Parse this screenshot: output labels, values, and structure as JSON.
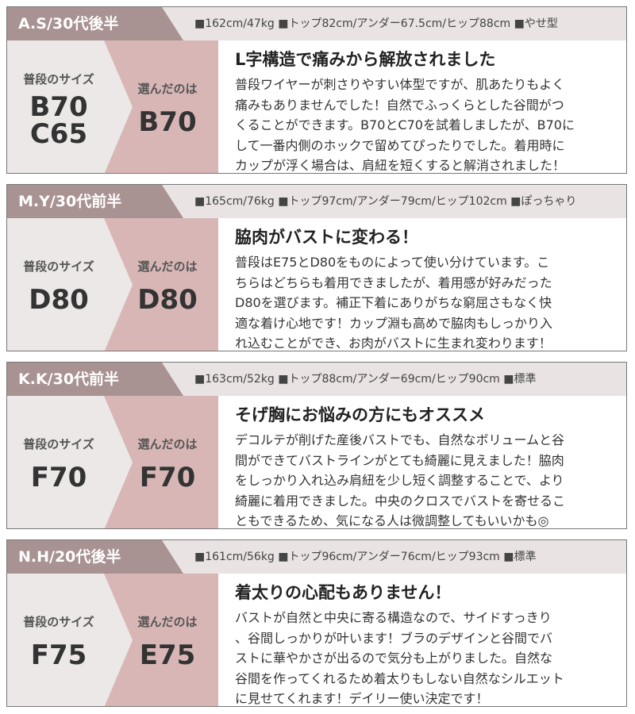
{
  "reviews": [
    {
      "name": "A.S/30代後半",
      "specs": "■162cm/47kg ■トップ82cm/アンダー67.5cm/ヒップ88cm ■やせ型",
      "usual_label": "普段のサイズ",
      "usual_size": [
        "B70",
        "C65"
      ],
      "chosen_label": "選んだのは",
      "chosen_size": "B70",
      "title": "L字構造で痛みから解放されました",
      "body": [
        "普段ワイヤーが刺さりやすい体型ですが、肌あたりもよく",
        "痛みもありませんでした！自然でふっくらとした谷間がつ",
        "くることができます。B70とC70を試着しましたが、B70に",
        "して一番内側のホックで留めてぴったりでした。着用時に",
        "カップが浮く場合は、肩紐を短くすると解消されました！"
      ]
    },
    {
      "name": "M.Y/30代前半",
      "specs": "■165cm/76kg ■トップ97cm/アンダー79cm/ヒップ102cm ■ぽっちゃり",
      "usual_label": "普段のサイズ",
      "usual_size": [
        "D80"
      ],
      "chosen_label": "選んだのは",
      "chosen_size": "D80",
      "title": "脇肉がバストに変わる！",
      "body": [
        "普段はE75とD80をものによって使い分けています。こ",
        "ちらはどちらも着用できましたが、着用感が好みだった",
        "D80を選びます。補正下着にありがちな窮屈さもなく快",
        "適な着け心地です！カップ淵も高めで脇肉もしっかり入",
        "れ込むことができ、お肉がバストに生まれ変わります！"
      ]
    },
    {
      "name": "K.K/30代前半",
      "specs": "■163cm/52kg ■トップ88cm/アンダー69cm/ヒップ90cm ■標準",
      "usual_label": "普段のサイズ",
      "usual_size": [
        "F70"
      ],
      "chosen_label": "選んだのは",
      "chosen_size": "F70",
      "title": "そげ胸にお悩みの方にもオススメ",
      "body": [
        "デコルテが削げた産後バストでも、自然なボリュームと谷",
        "間ができてバストラインがとても綺麗に見えました！脇肉",
        "をしっかり入れ込み肩紐を少し短く調整することで、より",
        "綺麗に着用できました。中央のクロスでバストを寄せるこ",
        "ともできるため、気になる人は微調整してもいいかも◎"
      ]
    },
    {
      "name": "N.H/20代後半",
      "specs": "■161cm/56kg ■トップ96cm/アンダー76cm/ヒップ93cm ■標準",
      "usual_label": "普段のサイズ",
      "usual_size": [
        "F75"
      ],
      "chosen_label": "選んだのは",
      "chosen_size": "E75",
      "title": "着太りの心配もありません！",
      "body": [
        "バストが自然と中央に寄る構造なので、サイドすっきり",
        "、谷間しっかりが叶います！ブラのデザインと谷間でバ",
        "ストに華やかさが出るので気分も上がりました。自然な",
        "谷間を作ってくれるため着太りもしない自然なシルエット",
        "に見せてくれます！デイリー使い決定です！"
      ]
    }
  ]
}
